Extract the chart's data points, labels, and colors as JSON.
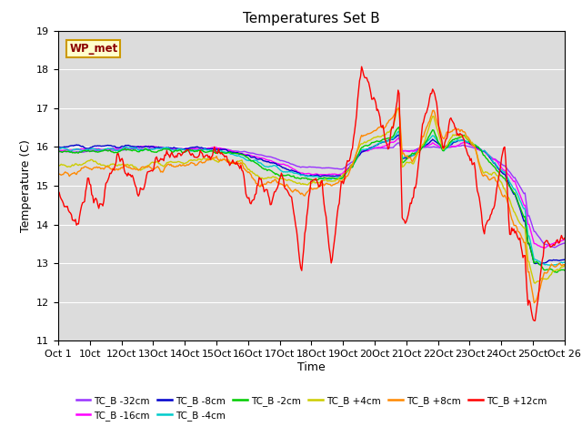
{
  "title": "Temperatures Set B",
  "xlabel": "Time",
  "ylabel": "Temperature (C)",
  "ylim": [
    11.0,
    19.0
  ],
  "yticks": [
    11.0,
    12.0,
    13.0,
    14.0,
    15.0,
    16.0,
    17.0,
    18.0,
    19.0
  ],
  "xtick_labels": [
    "Oct 1",
    "10ct",
    "12Oct",
    "13Oct",
    "14Oct",
    "15Oct",
    "16Oct",
    "17Oct",
    "18Oct",
    "19Oct",
    "20Oct",
    "21Oct",
    "22Oct",
    "23Oct",
    "24Oct",
    "25Oct",
    "Oct 26"
  ],
  "series_colors": [
    "#9933ff",
    "#ff00ff",
    "#0000cc",
    "#00cccc",
    "#00cc00",
    "#cccc00",
    "#ff8800",
    "#ff0000"
  ],
  "series_labels": [
    "TC_B -32cm",
    "TC_B -16cm",
    "TC_B -8cm",
    "TC_B -4cm",
    "TC_B -2cm",
    "TC_B +4cm",
    "TC_B +8cm",
    "TC_B +12cm"
  ],
  "wp_met_label": "WP_met",
  "bg_color": "#dcdcdc",
  "fig_bg": "#ffffff",
  "linewidth": 1.0
}
